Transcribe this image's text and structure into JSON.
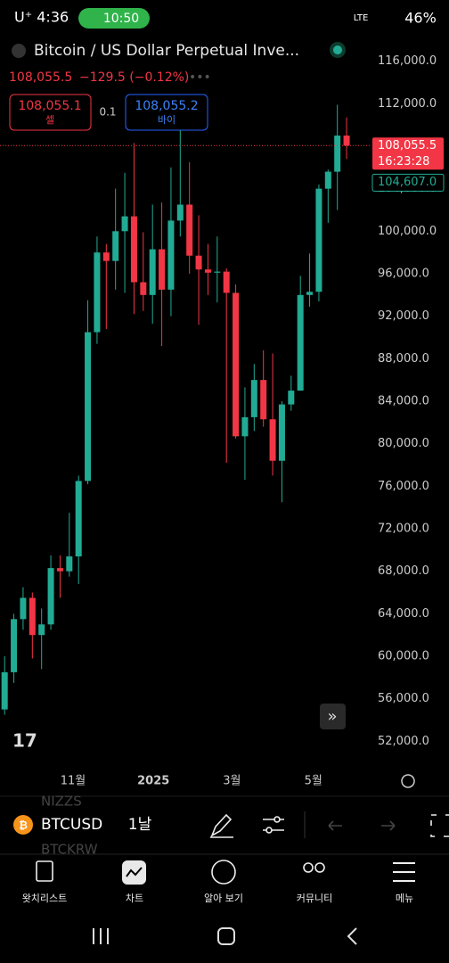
{
  "status": {
    "carrier": "U⁺ 4:36",
    "call": "10:50",
    "network": "LTE",
    "battery": "46%"
  },
  "header": {
    "title": "Bitcoin / US Dollar Perpetual Inve...",
    "price": "108,055.5",
    "change": "−129.5 (−0.12%)",
    "sell_price": "108,055.1",
    "sell": "셀",
    "spread": "0.1",
    "buy_price": "108,055.2",
    "buy": "바이"
  },
  "price_labels": {
    "last": "108,055.5",
    "countdown": "16:23:28",
    "marker": "104,607.0"
  },
  "toolbar": {
    "symbol": "BTCUSD",
    "interval": "1날",
    "behind_top": "NIZZS",
    "behind_bottom": "BTCKRW"
  },
  "tabs": [
    "왓치리스트",
    "차트",
    "알아 보기",
    "커뮤니티",
    "메뉴"
  ],
  "chart_data": {
    "type": "candlestick",
    "up_color": "#22ab94",
    "down_color": "#f23645",
    "ylim": [
      49600,
      118400
    ],
    "yticks": [
      {
        "value": 52000,
        "label": "52,000.0"
      },
      {
        "value": 56000,
        "label": "56,000.0"
      },
      {
        "value": 60000,
        "label": "60,000.0"
      },
      {
        "value": 64000,
        "label": "64,000.0"
      },
      {
        "value": 68000,
        "label": "68,000.0"
      },
      {
        "value": 72000,
        "label": "72,000.0"
      },
      {
        "value": 76000,
        "label": "76,000.0"
      },
      {
        "value": 80000,
        "label": "80,000.0"
      },
      {
        "value": 84000,
        "label": "84,000.0"
      },
      {
        "value": 88000,
        "label": "88,000.0"
      },
      {
        "value": 92000,
        "label": "92,000.0"
      },
      {
        "value": 96000,
        "label": "96,000.0"
      },
      {
        "value": 100000,
        "label": "100,000.0"
      },
      {
        "value": 104000,
        "label": "104,000.0"
      },
      {
        "value": 108000,
        "label": "108,000.0"
      },
      {
        "value": 112000,
        "label": "112,000.0"
      },
      {
        "value": 116000,
        "label": "116,000.0"
      }
    ],
    "xlim": [
      -0.5,
      39.5
    ],
    "xticks": [
      {
        "value": 7.4,
        "label": "11월"
      },
      {
        "value": 16.1,
        "label": "2025"
      },
      {
        "value": 24.6,
        "label": "3월"
      },
      {
        "value": 33.4,
        "label": "5월"
      }
    ],
    "last_price": 108055.5,
    "marker_price": 104607.0,
    "open": [
      55000,
      58500,
      63500,
      65500,
      62000,
      63000,
      68300,
      68000,
      69400,
      76500,
      90500,
      98000,
      97200,
      100000,
      101400,
      95200,
      94000,
      98300,
      94500,
      101000,
      102500,
      97700,
      96400,
      96100,
      96200,
      94200,
      80700,
      82500,
      86000,
      82300,
      78400,
      83700,
      85000,
      94000,
      94300,
      104000,
      105600,
      109000
    ],
    "high": [
      60000,
      64000,
      66500,
      66000,
      64500,
      69500,
      69500,
      73500,
      77000,
      93500,
      99500,
      98800,
      104000,
      105500,
      108300,
      99900,
      102500,
      102700,
      106000,
      109500,
      106500,
      101500,
      98800,
      99500,
      96500,
      95000,
      85300,
      87500,
      88800,
      88500,
      84000,
      86400,
      95800,
      97900,
      104400,
      105800,
      111900,
      110700
    ],
    "low": [
      54500,
      57500,
      62500,
      59800,
      58800,
      62500,
      65500,
      67500,
      66800,
      76200,
      89400,
      90800,
      94500,
      94200,
      92200,
      92500,
      91300,
      89200,
      92000,
      99500,
      96000,
      91200,
      94000,
      93300,
      78200,
      80500,
      76600,
      81200,
      81600,
      77000,
      74500,
      83100,
      85000,
      92900,
      93400,
      100800,
      102000,
      106800
    ],
    "close": [
      58500,
      63500,
      65500,
      62000,
      63000,
      68300,
      68000,
      69400,
      76500,
      90500,
      98000,
      97200,
      100000,
      101400,
      95200,
      94000,
      98300,
      94500,
      101000,
      102500,
      97700,
      96400,
      96100,
      96200,
      94200,
      80700,
      82500,
      86000,
      82300,
      78400,
      83700,
      85000,
      94000,
      94300,
      104000,
      105600,
      109000,
      108055.5
    ]
  }
}
